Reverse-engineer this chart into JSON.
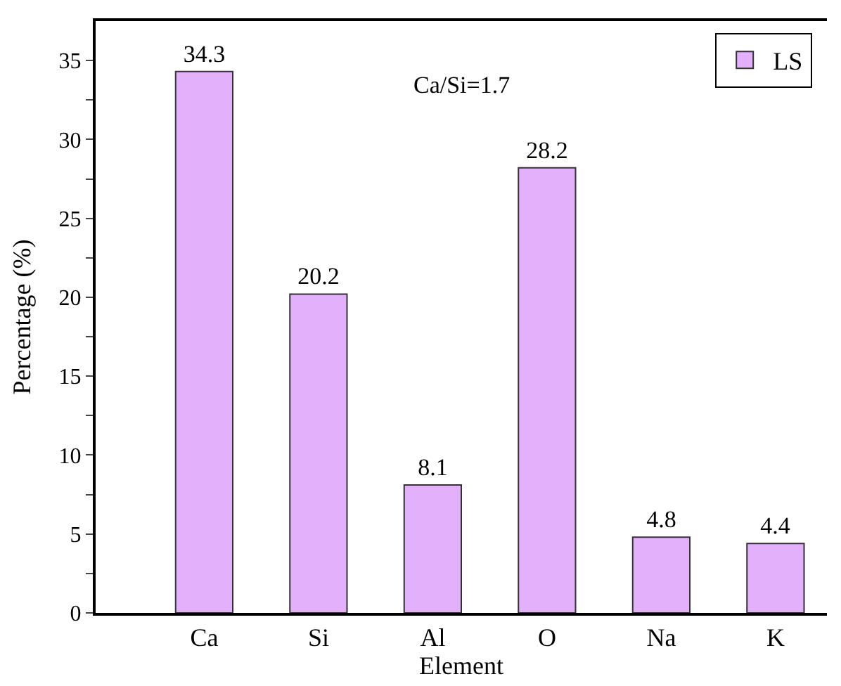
{
  "chart_data": {
    "type": "bar",
    "xlabel": "Element",
    "ylabel": "Percentage (%)",
    "categories": [
      "Ca",
      "Si",
      "Al",
      "O",
      "Na",
      "K"
    ],
    "series": [
      {
        "name": "LS",
        "color": "#e3b0fb",
        "values": [
          34.3,
          20.2,
          8.1,
          28.2,
          4.8,
          4.4
        ]
      }
    ],
    "ylim": [
      0,
      37.5
    ],
    "yticks": [
      0,
      {
        "value": 2.5,
        "label": null
      },
      5,
      {
        "value": 7.5,
        "label": null
      },
      10,
      {
        "value": 12.5,
        "label": null
      },
      15,
      {
        "value": 17.5,
        "label": null
      },
      20,
      {
        "value": 22.5,
        "label": null
      },
      25,
      {
        "value": 27.5,
        "label": null
      },
      30,
      {
        "value": 32.5,
        "label": null
      },
      35
    ],
    "data_labels": true,
    "legend": "top right",
    "annotations": [
      "Ca/Si=1.7"
    ]
  }
}
